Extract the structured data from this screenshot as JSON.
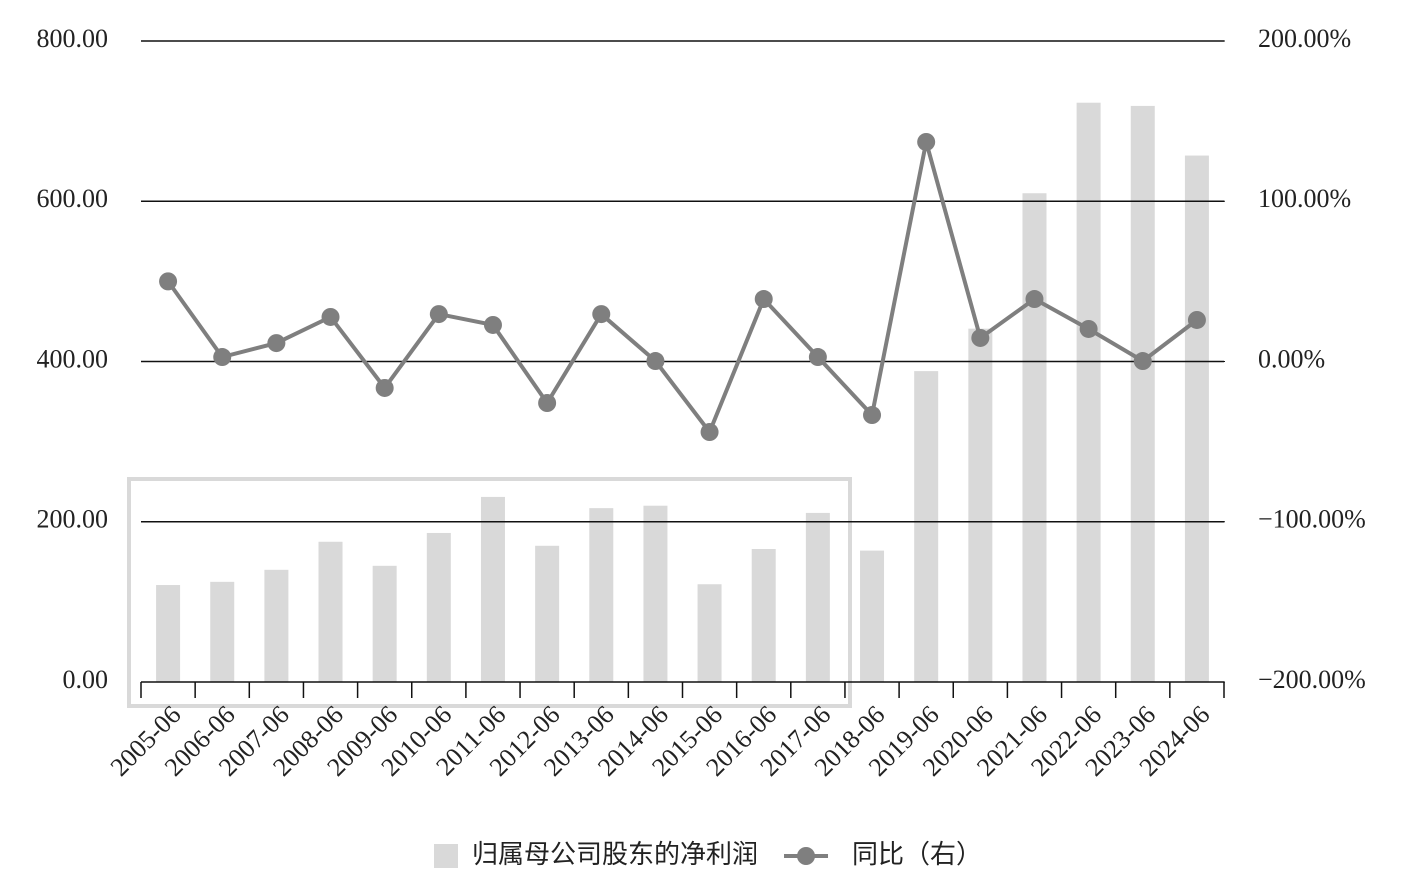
{
  "chart_data": {
    "type": "bar",
    "categories": [
      "2005-06",
      "2006-06",
      "2007-06",
      "2008-06",
      "2009-06",
      "2010-06",
      "2011-06",
      "2012-06",
      "2013-06",
      "2014-06",
      "2015-06",
      "2016-06",
      "2017-06",
      "2018-06",
      "2019-06",
      "2020-06",
      "2021-06",
      "2022-06",
      "2023-06",
      "2024-06"
    ],
    "series": [
      {
        "name": "归属母公司股东的净利润",
        "type": "bar",
        "color": "#d9d9d9",
        "axis": "y",
        "values": [
          121,
          125,
          140,
          175,
          145,
          186,
          231,
          170,
          217,
          220,
          122,
          166,
          211,
          164,
          388,
          441,
          610,
          723,
          719,
          657
        ]
      },
      {
        "name": "同比（右）",
        "type": "line",
        "color": "#7f7f7f",
        "axis": "y2",
        "values": [
          50,
          2.8,
          11.5,
          27.8,
          -16.5,
          29.6,
          22.8,
          -25.9,
          29.6,
          0.3,
          -44,
          39,
          2.8,
          -33.4,
          137,
          14.7,
          39,
          20.3,
          0.3,
          25.9
        ]
      }
    ],
    "ylim": [
      0,
      800
    ],
    "yticks": [
      {
        "value": 0,
        "label": "0.00"
      },
      {
        "value": 200,
        "label": "200.00"
      },
      {
        "value": 400,
        "label": "400.00"
      },
      {
        "value": 600,
        "label": "600.00"
      },
      {
        "value": 800,
        "label": "800.00"
      }
    ],
    "y2lim": [
      -200,
      200
    ],
    "y2ticks": [
      {
        "value": -200,
        "label": "−200.00%"
      },
      {
        "value": -100,
        "label": "−100.00%"
      },
      {
        "value": 0,
        "label": "0.00%"
      },
      {
        "value": 100,
        "label": "100.00%"
      },
      {
        "value": 200,
        "label": "200.00%"
      }
    ],
    "grid": true
  }
}
